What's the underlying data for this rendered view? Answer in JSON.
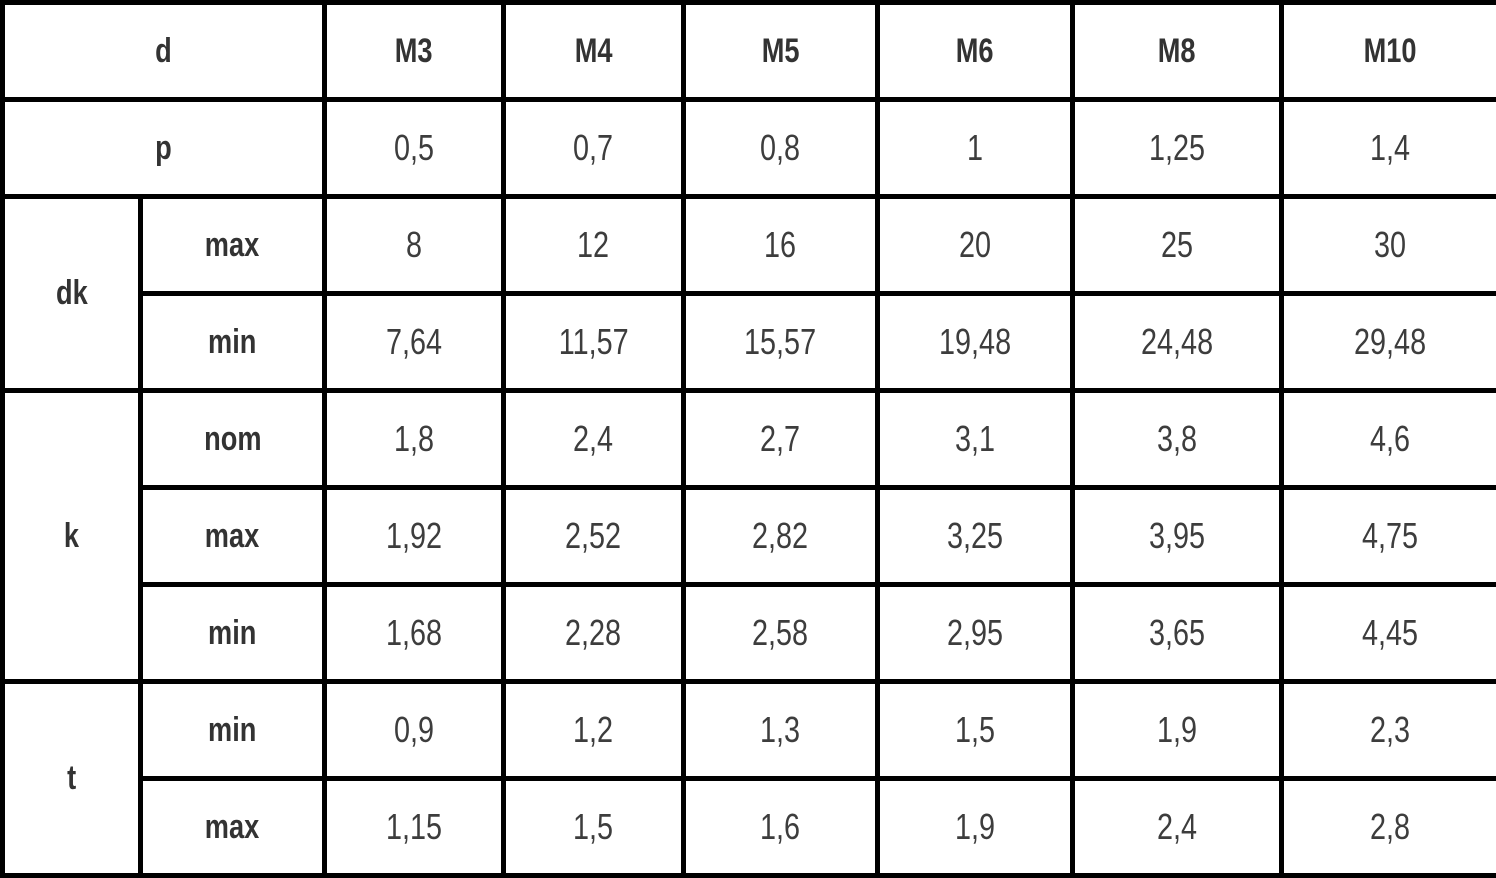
{
  "colors": {
    "border": "#000000",
    "label_text": "#333333",
    "value_text": "#3d3d3d",
    "background": "#ffffff"
  },
  "table": {
    "header": {
      "corner": "d",
      "cols": [
        "M3",
        "M4",
        "M5",
        "M6",
        "M8",
        "M10"
      ]
    },
    "p_row": {
      "label": "p",
      "values": [
        "0,5",
        "0,7",
        "0,8",
        "1",
        "1,25",
        "1,4"
      ]
    },
    "groups": [
      {
        "label": "dk",
        "rows": [
          {
            "sub": "max",
            "values": [
              "8",
              "12",
              "16",
              "20",
              "25",
              "30"
            ]
          },
          {
            "sub": "min",
            "values": [
              "7,64",
              "11,57",
              "15,57",
              "19,48",
              "24,48",
              "29,48"
            ]
          }
        ]
      },
      {
        "label": "k",
        "rows": [
          {
            "sub": "nom",
            "values": [
              "1,8",
              "2,4",
              "2,7",
              "3,1",
              "3,8",
              "4,6"
            ]
          },
          {
            "sub": "max",
            "values": [
              "1,92",
              "2,52",
              "2,82",
              "3,25",
              "3,95",
              "4,75"
            ]
          },
          {
            "sub": "min",
            "values": [
              "1,68",
              "2,28",
              "2,58",
              "2,95",
              "3,65",
              "4,45"
            ]
          }
        ]
      },
      {
        "label": "t",
        "rows": [
          {
            "sub": "min",
            "values": [
              "0,9",
              "1,2",
              "1,3",
              "1,5",
              "1,9",
              "2,3"
            ]
          },
          {
            "sub": "max",
            "values": [
              "1,15",
              "1,5",
              "1,6",
              "1,9",
              "2,4",
              "2,8"
            ]
          }
        ]
      }
    ]
  },
  "chart_data": {
    "type": "table",
    "title": "",
    "columns": [
      "d",
      "M3",
      "M4",
      "M5",
      "M6",
      "M8",
      "M10"
    ],
    "rows": [
      {
        "label": "p",
        "sublabel": "",
        "values": [
          "0,5",
          "0,7",
          "0,8",
          "1",
          "1,25",
          "1,4"
        ]
      },
      {
        "label": "dk",
        "sublabel": "max",
        "values": [
          "8",
          "12",
          "16",
          "20",
          "25",
          "30"
        ]
      },
      {
        "label": "dk",
        "sublabel": "min",
        "values": [
          "7,64",
          "11,57",
          "15,57",
          "19,48",
          "24,48",
          "29,48"
        ]
      },
      {
        "label": "k",
        "sublabel": "nom",
        "values": [
          "1,8",
          "2,4",
          "2,7",
          "3,1",
          "3,8",
          "4,6"
        ]
      },
      {
        "label": "k",
        "sublabel": "max",
        "values": [
          "1,92",
          "2,52",
          "2,82",
          "3,25",
          "3,95",
          "4,75"
        ]
      },
      {
        "label": "k",
        "sublabel": "min",
        "values": [
          "1,68",
          "2,28",
          "2,58",
          "2,95",
          "3,65",
          "4,45"
        ]
      },
      {
        "label": "t",
        "sublabel": "min",
        "values": [
          "0,9",
          "1,2",
          "1,3",
          "1,5",
          "1,9",
          "2,3"
        ]
      },
      {
        "label": "t",
        "sublabel": "max",
        "values": [
          "1,15",
          "1,5",
          "1,6",
          "1,9",
          "2,4",
          "2,8"
        ]
      }
    ]
  }
}
